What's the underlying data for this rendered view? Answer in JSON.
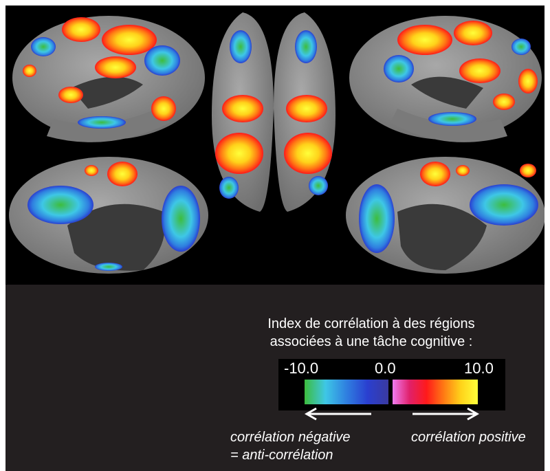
{
  "caption": {
    "line1": "Index de corrélation à des régions",
    "line2": "associées à une tâche cognitive :"
  },
  "scale": {
    "min_label": "-10.0",
    "mid_label": "0.0",
    "max_label": "10.0",
    "negative_colors": [
      "#3dbd3d",
      "#3ec7e6",
      "#2f7fe0",
      "#2a3fd0",
      "#3a3aa0"
    ],
    "positive_colors": [
      "#f07cf0",
      "#e0206a",
      "#ff1a1a",
      "#ff7a14",
      "#ffd21a",
      "#ffff3a"
    ]
  },
  "labels": {
    "negative_line1": "corrélation négative",
    "negative_line2": "= anti-corrélation",
    "positive": "corrélation positive"
  }
}
